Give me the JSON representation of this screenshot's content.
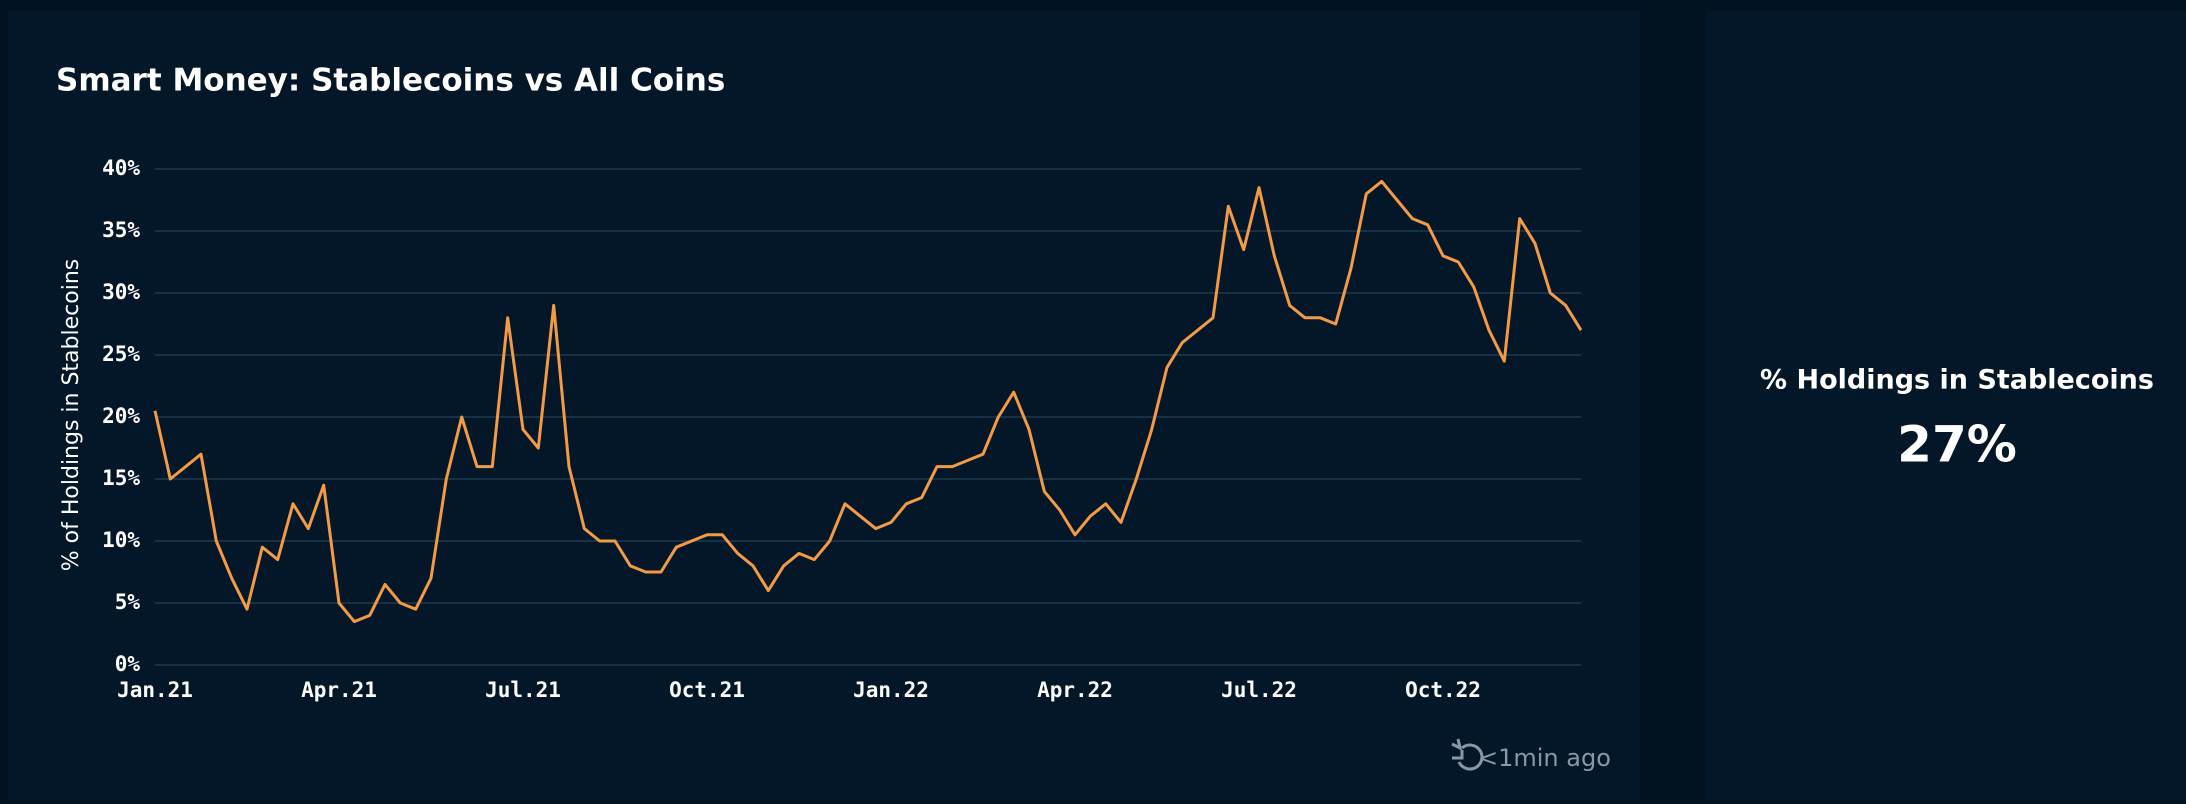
{
  "chart_data": {
    "type": "line",
    "title": "Smart Money: Stablecoins vs All Coins",
    "y_label": "% of Holdings in Stablecoins",
    "categories": [
      "Jan.21",
      null,
      null,
      null,
      null,
      null,
      null,
      null,
      null,
      null,
      null,
      null,
      "Apr.21",
      null,
      null,
      null,
      null,
      null,
      null,
      null,
      null,
      null,
      null,
      null,
      "Jul.21",
      null,
      null,
      null,
      null,
      null,
      null,
      null,
      null,
      null,
      null,
      null,
      "Oct.21",
      null,
      null,
      null,
      null,
      null,
      null,
      null,
      null,
      null,
      null,
      null,
      "Jan.22",
      null,
      null,
      null,
      null,
      null,
      null,
      null,
      null,
      null,
      null,
      null,
      "Apr.22",
      null,
      null,
      null,
      null,
      null,
      null,
      null,
      null,
      null,
      null,
      null,
      "Jul.22",
      null,
      null,
      null,
      null,
      null,
      null,
      null,
      null,
      null,
      null,
      null,
      "Oct.22",
      null,
      null,
      null,
      null,
      null,
      null,
      null,
      null,
      null
    ],
    "values": [
      20.5,
      15,
      16,
      17,
      10,
      7,
      4.5,
      9.5,
      8.5,
      13,
      11,
      14.5,
      5,
      3.5,
      4,
      6.5,
      5,
      4.5,
      7,
      15,
      20,
      16,
      16,
      28,
      19,
      17.5,
      29,
      16,
      11,
      10,
      10,
      8,
      7.5,
      7.5,
      9.5,
      10,
      10.5,
      10.5,
      9,
      8,
      6,
      8,
      9,
      8.5,
      10,
      13,
      12,
      11,
      11.5,
      13,
      13.5,
      16,
      16,
      16.5,
      17,
      20,
      22,
      19,
      14,
      12.5,
      10.5,
      12,
      13,
      11.5,
      15,
      19,
      24,
      26,
      27,
      28,
      37,
      33.5,
      38.5,
      33,
      29,
      28,
      28,
      27.5,
      32,
      38,
      39,
      37.5,
      36,
      35.5,
      33,
      32.5,
      30.5,
      27,
      24.5,
      36,
      34,
      30,
      29,
      27
    ],
    "color": "#f39a45",
    "ylim": [
      0,
      40
    ],
    "yticks": [
      {
        "value": 0,
        "label": "0%"
      },
      {
        "value": 5,
        "label": "5%"
      },
      {
        "value": 10,
        "label": "10%"
      },
      {
        "value": 15,
        "label": "15%"
      },
      {
        "value": 20,
        "label": "20%"
      },
      {
        "value": 25,
        "label": "25%"
      },
      {
        "value": 30,
        "label": "30%"
      },
      {
        "value": 35,
        "label": "35%"
      },
      {
        "value": 40,
        "label": "40%"
      }
    ],
    "grid": true
  },
  "kpi": {
    "title": "% Holdings in Stablecoins",
    "value": "27%"
  },
  "footer": "<1min ago"
}
